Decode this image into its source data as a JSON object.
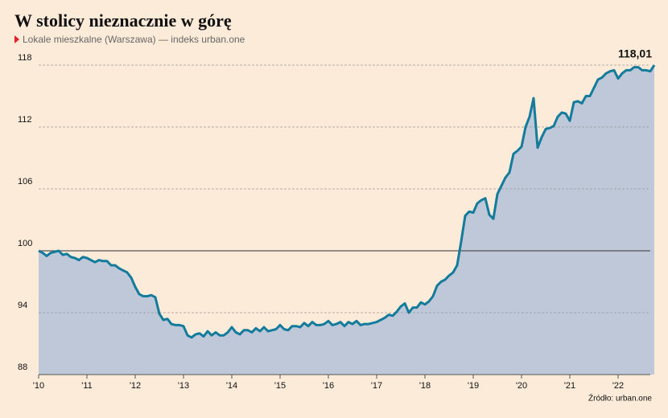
{
  "chart_data": {
    "type": "area",
    "title": "W stolicy nieznacznie w górę",
    "subtitle": "Lokale mieszkalne (Warszawa) — indeks urban.one",
    "source": "Źródło: urban.one",
    "x": [
      2010,
      2010.083,
      2010.167,
      2010.25,
      2010.333,
      2010.417,
      2010.5,
      2010.583,
      2010.667,
      2010.75,
      2010.833,
      2010.917,
      2011,
      2011.083,
      2011.167,
      2011.25,
      2011.333,
      2011.417,
      2011.5,
      2011.583,
      2011.667,
      2011.75,
      2011.833,
      2011.917,
      2012,
      2012.083,
      2012.167,
      2012.25,
      2012.333,
      2012.417,
      2012.5,
      2012.583,
      2012.667,
      2012.75,
      2012.833,
      2012.917,
      2013,
      2013.083,
      2013.167,
      2013.25,
      2013.333,
      2013.417,
      2013.5,
      2013.583,
      2013.667,
      2013.75,
      2013.833,
      2013.917,
      2014,
      2014.083,
      2014.167,
      2014.25,
      2014.333,
      2014.417,
      2014.5,
      2014.583,
      2014.667,
      2014.75,
      2014.833,
      2014.917,
      2015,
      2015.083,
      2015.167,
      2015.25,
      2015.333,
      2015.417,
      2015.5,
      2015.583,
      2015.667,
      2015.75,
      2015.833,
      2015.917,
      2016,
      2016.083,
      2016.167,
      2016.25,
      2016.333,
      2016.417,
      2016.5,
      2016.583,
      2016.667,
      2016.75,
      2016.833,
      2016.917,
      2017,
      2017.083,
      2017.167,
      2017.25,
      2017.333,
      2017.417,
      2017.5,
      2017.583,
      2017.667,
      2017.75,
      2017.833,
      2017.917,
      2018,
      2018.083,
      2018.167,
      2018.25,
      2018.333,
      2018.417,
      2018.5,
      2018.583,
      2018.667,
      2018.75,
      2018.833,
      2018.917,
      2019,
      2019.083,
      2019.167,
      2019.25,
      2019.333,
      2019.417,
      2019.5,
      2019.583,
      2019.667,
      2019.75,
      2019.833,
      2019.917,
      2020,
      2020.083,
      2020.167,
      2020.25,
      2020.333,
      2020.417,
      2020.5,
      2020.583,
      2020.667,
      2020.75,
      2020.833,
      2020.917,
      2021,
      2021.083,
      2021.167,
      2021.25,
      2021.333,
      2021.417,
      2021.5,
      2021.583,
      2021.667,
      2021.75,
      2021.833,
      2021.917,
      2022,
      2022.083,
      2022.167,
      2022.25,
      2022.333,
      2022.417,
      2022.5,
      2022.583,
      2022.667,
      2022.75
    ],
    "values": [
      100.0,
      99.8,
      99.5,
      99.8,
      99.9,
      100.0,
      99.6,
      99.7,
      99.4,
      99.3,
      99.1,
      99.4,
      99.3,
      99.1,
      98.9,
      99.1,
      99.0,
      99.0,
      98.6,
      98.6,
      98.3,
      98.1,
      97.9,
      97.4,
      96.5,
      95.8,
      95.6,
      95.6,
      95.7,
      95.5,
      93.9,
      93.3,
      93.4,
      92.9,
      92.8,
      92.8,
      92.7,
      91.8,
      91.6,
      91.9,
      92.0,
      91.7,
      92.2,
      91.8,
      92.1,
      91.8,
      91.8,
      92.1,
      92.6,
      92.1,
      91.9,
      92.3,
      92.3,
      92.1,
      92.5,
      92.2,
      92.6,
      92.2,
      92.3,
      92.4,
      92.8,
      92.4,
      92.3,
      92.7,
      92.7,
      92.6,
      93.0,
      92.7,
      93.1,
      92.8,
      92.8,
      92.9,
      93.2,
      92.8,
      92.9,
      93.1,
      92.7,
      93.1,
      92.9,
      93.2,
      92.8,
      92.9,
      92.9,
      93.0,
      93.1,
      93.3,
      93.5,
      93.8,
      93.7,
      94.1,
      94.6,
      94.9,
      94.0,
      94.5,
      94.5,
      95.0,
      94.8,
      95.1,
      95.6,
      96.6,
      97.0,
      97.2,
      97.6,
      97.9,
      98.6,
      100.9,
      103.4,
      103.8,
      103.7,
      104.6,
      104.9,
      105.1,
      103.5,
      103.1,
      105.5,
      106.3,
      107.1,
      107.6,
      109.4,
      109.7,
      110.1,
      112.0,
      113.0,
      114.8,
      110.0,
      111.0,
      111.8,
      111.9,
      112.1,
      113.0,
      113.4,
      113.3,
      112.6,
      114.4,
      114.5,
      114.3,
      115.0,
      115.0,
      115.8,
      116.6,
      116.8,
      117.2,
      117.4,
      117.5,
      116.7,
      117.2,
      117.5,
      117.5,
      117.8,
      117.8,
      117.5,
      117.5,
      117.4,
      118.01
    ],
    "value_labels": [
      null,
      null,
      null,
      null,
      null,
      null,
      null,
      null,
      null,
      null,
      null,
      null,
      null,
      null,
      null,
      null,
      null,
      null,
      null,
      null,
      null,
      null,
      null,
      null,
      null,
      null,
      null,
      null,
      null,
      null,
      null,
      null,
      null,
      null,
      null,
      null,
      null,
      null,
      null,
      null,
      null,
      null,
      null,
      null,
      null,
      null,
      null,
      null,
      null,
      null,
      null,
      null,
      null,
      null,
      null,
      null,
      null,
      null,
      null,
      null,
      null,
      null,
      null,
      null,
      null,
      null,
      null,
      null,
      null,
      null,
      null,
      null,
      null,
      null,
      null,
      null,
      null,
      null,
      null,
      null,
      null,
      null,
      null,
      null,
      null,
      null,
      null,
      null,
      null,
      null,
      null,
      null,
      null,
      null,
      null,
      null,
      null,
      null,
      null,
      null,
      null,
      null,
      null,
      null,
      null,
      null,
      null,
      null,
      null,
      null,
      null,
      null,
      null,
      null,
      null,
      null,
      null,
      null,
      null,
      null,
      null,
      null,
      null,
      null,
      null,
      null,
      null,
      null,
      null,
      null,
      null,
      null,
      null,
      null,
      null,
      null,
      null,
      null,
      null,
      null,
      null,
      null,
      null,
      null,
      null,
      null,
      null,
      null,
      null,
      null,
      null,
      null,
      null,
      "118,01"
    ],
    "line_color": "#137b9c",
    "area_color": "#bfc8d8",
    "reference_line": 100,
    "xlim": [
      2010,
      2022.75
    ],
    "xticks": [
      {
        "value": 2010,
        "label": "'10"
      },
      {
        "value": 2011,
        "label": "'11"
      },
      {
        "value": 2012,
        "label": "'12"
      },
      {
        "value": 2013,
        "label": "'13"
      },
      {
        "value": 2014,
        "label": "'14"
      },
      {
        "value": 2015,
        "label": "'15"
      },
      {
        "value": 2016,
        "label": "'16"
      },
      {
        "value": 2017,
        "label": "'17"
      },
      {
        "value": 2018,
        "label": "'18"
      },
      {
        "value": 2019,
        "label": "'19"
      },
      {
        "value": 2020,
        "label": "'20"
      },
      {
        "value": 2021,
        "label": "'21"
      },
      {
        "value": 2022,
        "label": "'22"
      }
    ],
    "ylim": [
      88,
      118
    ],
    "yticks": [
      88,
      94,
      100,
      106,
      112,
      118
    ],
    "grid": true
  }
}
